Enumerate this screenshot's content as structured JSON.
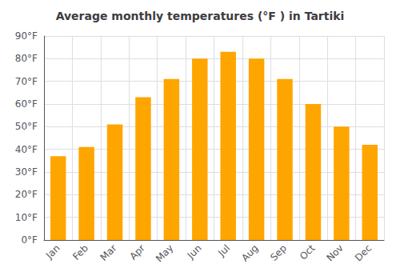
{
  "chart_data": {
    "type": "bar",
    "title": "Average monthly temperatures (°F ) in Tartiki",
    "categories": [
      "Jan",
      "Feb",
      "Mar",
      "Apr",
      "May",
      "Jun",
      "Jul",
      "Aug",
      "Sep",
      "Oct",
      "Nov",
      "Dec"
    ],
    "values": [
      37,
      41,
      51,
      63,
      71,
      80,
      83,
      80,
      71,
      60,
      50,
      42
    ],
    "color": "#FFA500",
    "ylim": [
      0,
      90
    ],
    "yticks": [
      {
        "value": 0,
        "label": "0°F"
      },
      {
        "value": 10,
        "label": "10°F"
      },
      {
        "value": 20,
        "label": "20°F"
      },
      {
        "value": 30,
        "label": "30°F"
      },
      {
        "value": 40,
        "label": "40°F"
      },
      {
        "value": 50,
        "label": "50°F"
      },
      {
        "value": 60,
        "label": "60°F"
      },
      {
        "value": 70,
        "label": "70°F"
      },
      {
        "value": 80,
        "label": "80°F"
      },
      {
        "value": 90,
        "label": "90°F"
      }
    ],
    "grid": true
  }
}
